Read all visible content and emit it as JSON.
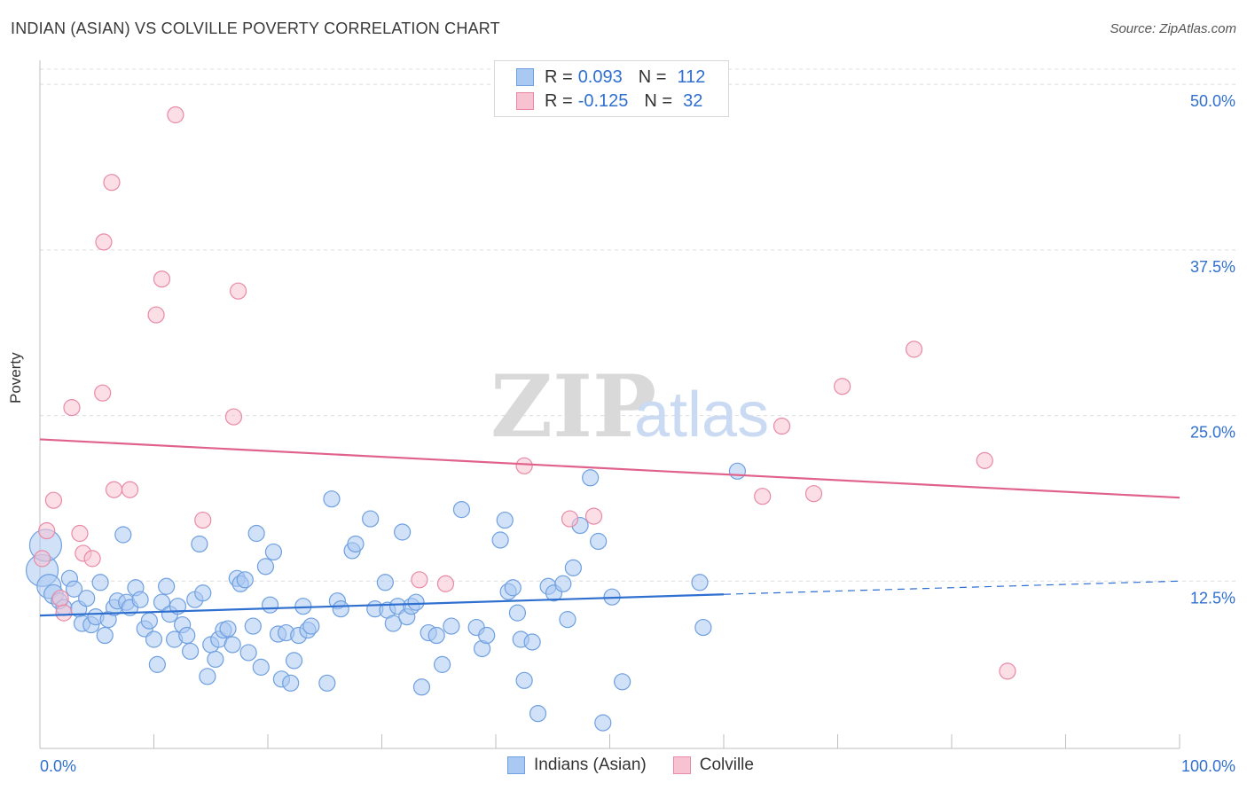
{
  "title": "INDIAN (ASIAN) VS COLVILLE POVERTY CORRELATION CHART",
  "source": "Source: ZipAtlas.com",
  "watermark": {
    "zip": "ZIP",
    "atlas": "atlas"
  },
  "legend": {
    "rows": [
      {
        "r_label": "R =",
        "r_value": "0.093",
        "n_label": "N =",
        "n_value": "112",
        "color": "#a9c8f2",
        "border": "#6fa0e0"
      },
      {
        "r_label": "R =",
        "r_value": "-0.125",
        "n_label": "N =",
        "n_value": "32",
        "color": "#f7c3d2",
        "border": "#e88aa6"
      }
    ]
  },
  "bottom_legend": [
    {
      "label": "Indians (Asian)",
      "color": "#a9c8f2",
      "border": "#6fa0e0"
    },
    {
      "label": "Colville",
      "color": "#f7c3d2",
      "border": "#e88aa6"
    }
  ],
  "chart_data": {
    "type": "scatter",
    "title": "INDIAN (ASIAN) VS COLVILLE POVERTY CORRELATION CHART",
    "xlabel": "",
    "ylabel": "Poverty",
    "xlim": [
      0,
      100
    ],
    "ylim": [
      0,
      50
    ],
    "x_tick_labels": [
      {
        "value": 0,
        "label": "0.0%"
      },
      {
        "value": 100,
        "label": "100.0%"
      }
    ],
    "y_tick_labels": [
      {
        "value": 12.5,
        "label": "12.5%"
      },
      {
        "value": 25,
        "label": "25.0%"
      },
      {
        "value": 37.5,
        "label": "37.5%"
      },
      {
        "value": 50,
        "label": "50.0%"
      }
    ],
    "grid": "horizontal dashed",
    "series": [
      {
        "name": "Indians (Asian)",
        "color": "#6fa0e0",
        "fill": "#a9c8f2",
        "trend": {
          "x": [
            0,
            60
          ],
          "y": [
            9.9,
            11.5
          ],
          "dashed_extension": {
            "x": [
              60,
              100
            ],
            "y": [
              11.5,
              12.5
            ]
          },
          "color": "#2f6fcf"
        },
        "points": [
          {
            "x": 0.2,
            "y": 13.3,
            "s": 2
          },
          {
            "x": 0.5,
            "y": 15.2,
            "s": 2
          },
          {
            "x": 0.8,
            "y": 12.1,
            "s": 1.5
          },
          {
            "x": 1.2,
            "y": 11.5,
            "s": 1.2
          },
          {
            "x": 1.7,
            "y": 11.0,
            "s": 1
          },
          {
            "x": 2.1,
            "y": 10.5,
            "s": 1
          },
          {
            "x": 2.6,
            "y": 12.7,
            "s": 1
          },
          {
            "x": 3.0,
            "y": 11.9,
            "s": 1
          },
          {
            "x": 3.4,
            "y": 10.4,
            "s": 1
          },
          {
            "x": 3.7,
            "y": 9.3,
            "s": 1
          },
          {
            "x": 4.1,
            "y": 11.2,
            "s": 1
          },
          {
            "x": 4.5,
            "y": 9.2,
            "s": 1
          },
          {
            "x": 4.9,
            "y": 9.8,
            "s": 1
          },
          {
            "x": 5.3,
            "y": 12.4,
            "s": 1
          },
          {
            "x": 5.7,
            "y": 8.4,
            "s": 1
          },
          {
            "x": 6.0,
            "y": 9.6,
            "s": 1
          },
          {
            "x": 6.5,
            "y": 10.5,
            "s": 1
          },
          {
            "x": 6.8,
            "y": 11.0,
            "s": 1
          },
          {
            "x": 7.3,
            "y": 16.0,
            "s": 1
          },
          {
            "x": 7.6,
            "y": 10.9,
            "s": 1
          },
          {
            "x": 7.9,
            "y": 10.5,
            "s": 1
          },
          {
            "x": 8.4,
            "y": 12.0,
            "s": 1
          },
          {
            "x": 8.8,
            "y": 11.1,
            "s": 1
          },
          {
            "x": 9.2,
            "y": 8.9,
            "s": 1
          },
          {
            "x": 9.6,
            "y": 9.5,
            "s": 1
          },
          {
            "x": 10.0,
            "y": 8.1,
            "s": 1
          },
          {
            "x": 10.3,
            "y": 6.2,
            "s": 1
          },
          {
            "x": 10.7,
            "y": 10.9,
            "s": 1
          },
          {
            "x": 11.1,
            "y": 12.1,
            "s": 1
          },
          {
            "x": 11.4,
            "y": 10.0,
            "s": 1
          },
          {
            "x": 11.8,
            "y": 8.1,
            "s": 1
          },
          {
            "x": 12.1,
            "y": 10.6,
            "s": 1
          },
          {
            "x": 12.5,
            "y": 9.2,
            "s": 1
          },
          {
            "x": 12.9,
            "y": 8.4,
            "s": 1
          },
          {
            "x": 13.2,
            "y": 7.2,
            "s": 1
          },
          {
            "x": 13.6,
            "y": 11.1,
            "s": 1
          },
          {
            "x": 14.0,
            "y": 15.3,
            "s": 1
          },
          {
            "x": 14.3,
            "y": 11.6,
            "s": 1
          },
          {
            "x": 14.7,
            "y": 5.3,
            "s": 1
          },
          {
            "x": 15.0,
            "y": 7.7,
            "s": 1
          },
          {
            "x": 15.4,
            "y": 6.6,
            "s": 1
          },
          {
            "x": 15.7,
            "y": 8.1,
            "s": 1
          },
          {
            "x": 16.1,
            "y": 8.8,
            "s": 1
          },
          {
            "x": 16.5,
            "y": 8.9,
            "s": 1
          },
          {
            "x": 16.9,
            "y": 7.7,
            "s": 1
          },
          {
            "x": 17.3,
            "y": 12.7,
            "s": 1
          },
          {
            "x": 17.6,
            "y": 12.3,
            "s": 1
          },
          {
            "x": 18.0,
            "y": 12.6,
            "s": 1
          },
          {
            "x": 18.3,
            "y": 7.1,
            "s": 1
          },
          {
            "x": 18.7,
            "y": 9.1,
            "s": 1
          },
          {
            "x": 19.0,
            "y": 16.1,
            "s": 1
          },
          {
            "x": 19.4,
            "y": 6.0,
            "s": 1
          },
          {
            "x": 19.8,
            "y": 13.6,
            "s": 1
          },
          {
            "x": 20.2,
            "y": 10.7,
            "s": 1
          },
          {
            "x": 20.5,
            "y": 14.7,
            "s": 1
          },
          {
            "x": 20.9,
            "y": 8.5,
            "s": 1
          },
          {
            "x": 21.2,
            "y": 5.1,
            "s": 1
          },
          {
            "x": 21.6,
            "y": 8.6,
            "s": 1
          },
          {
            "x": 22.0,
            "y": 4.8,
            "s": 1
          },
          {
            "x": 22.3,
            "y": 6.5,
            "s": 1
          },
          {
            "x": 22.7,
            "y": 8.4,
            "s": 1
          },
          {
            "x": 23.1,
            "y": 10.6,
            "s": 1
          },
          {
            "x": 23.5,
            "y": 8.8,
            "s": 1
          },
          {
            "x": 23.8,
            "y": 9.1,
            "s": 1
          },
          {
            "x": 25.2,
            "y": 4.8,
            "s": 1
          },
          {
            "x": 25.6,
            "y": 18.7,
            "s": 1
          },
          {
            "x": 26.1,
            "y": 11.0,
            "s": 1
          },
          {
            "x": 26.4,
            "y": 10.4,
            "s": 1
          },
          {
            "x": 27.4,
            "y": 14.8,
            "s": 1
          },
          {
            "x": 27.7,
            "y": 15.3,
            "s": 1
          },
          {
            "x": 29.0,
            "y": 17.2,
            "s": 1
          },
          {
            "x": 29.4,
            "y": 10.4,
            "s": 1
          },
          {
            "x": 30.3,
            "y": 12.4,
            "s": 1
          },
          {
            "x": 30.5,
            "y": 10.3,
            "s": 1
          },
          {
            "x": 31.0,
            "y": 9.3,
            "s": 1
          },
          {
            "x": 31.4,
            "y": 10.6,
            "s": 1
          },
          {
            "x": 31.8,
            "y": 16.2,
            "s": 1
          },
          {
            "x": 32.2,
            "y": 9.8,
            "s": 1
          },
          {
            "x": 32.6,
            "y": 10.6,
            "s": 1
          },
          {
            "x": 33.0,
            "y": 10.9,
            "s": 1
          },
          {
            "x": 33.5,
            "y": 4.5,
            "s": 1
          },
          {
            "x": 34.1,
            "y": 8.6,
            "s": 1
          },
          {
            "x": 34.8,
            "y": 8.4,
            "s": 1
          },
          {
            "x": 35.3,
            "y": 6.2,
            "s": 1
          },
          {
            "x": 36.1,
            "y": 9.1,
            "s": 1
          },
          {
            "x": 37.0,
            "y": 17.9,
            "s": 1
          },
          {
            "x": 38.3,
            "y": 9.0,
            "s": 1
          },
          {
            "x": 38.8,
            "y": 7.4,
            "s": 1
          },
          {
            "x": 39.2,
            "y": 8.4,
            "s": 1
          },
          {
            "x": 40.4,
            "y": 15.6,
            "s": 1
          },
          {
            "x": 40.8,
            "y": 17.1,
            "s": 1
          },
          {
            "x": 41.1,
            "y": 11.7,
            "s": 1
          },
          {
            "x": 41.5,
            "y": 12.0,
            "s": 1
          },
          {
            "x": 41.9,
            "y": 10.1,
            "s": 1
          },
          {
            "x": 42.2,
            "y": 8.1,
            "s": 1
          },
          {
            "x": 42.5,
            "y": 5.0,
            "s": 1
          },
          {
            "x": 43.2,
            "y": 7.9,
            "s": 1
          },
          {
            "x": 43.7,
            "y": 2.5,
            "s": 1
          },
          {
            "x": 44.6,
            "y": 12.1,
            "s": 1
          },
          {
            "x": 45.1,
            "y": 11.6,
            "s": 1
          },
          {
            "x": 45.9,
            "y": 12.3,
            "s": 1
          },
          {
            "x": 46.3,
            "y": 9.6,
            "s": 1
          },
          {
            "x": 46.8,
            "y": 13.5,
            "s": 1
          },
          {
            "x": 47.4,
            "y": 16.7,
            "s": 1
          },
          {
            "x": 48.3,
            "y": 20.3,
            "s": 1
          },
          {
            "x": 49.0,
            "y": 15.5,
            "s": 1
          },
          {
            "x": 49.4,
            "y": 1.8,
            "s": 1
          },
          {
            "x": 50.2,
            "y": 11.3,
            "s": 1
          },
          {
            "x": 51.1,
            "y": 4.9,
            "s": 1
          },
          {
            "x": 57.9,
            "y": 12.4,
            "s": 1
          },
          {
            "x": 58.2,
            "y": 9.0,
            "s": 1
          },
          {
            "x": 61.2,
            "y": 20.8,
            "s": 1
          }
        ]
      },
      {
        "name": "Colville",
        "color": "#e88aa6",
        "fill": "#f7c3d2",
        "trend": {
          "x": [
            0,
            100
          ],
          "y": [
            23.2,
            18.8
          ],
          "color": "#e0628c"
        },
        "points": [
          {
            "x": 0.2,
            "y": 14.2,
            "s": 1
          },
          {
            "x": 0.6,
            "y": 16.3,
            "s": 1
          },
          {
            "x": 1.2,
            "y": 18.6,
            "s": 1
          },
          {
            "x": 1.8,
            "y": 11.2,
            "s": 1
          },
          {
            "x": 2.1,
            "y": 10.1,
            "s": 1
          },
          {
            "x": 2.8,
            "y": 25.6,
            "s": 1
          },
          {
            "x": 3.5,
            "y": 16.1,
            "s": 1
          },
          {
            "x": 3.8,
            "y": 14.6,
            "s": 1
          },
          {
            "x": 4.6,
            "y": 14.2,
            "s": 1
          },
          {
            "x": 5.5,
            "y": 26.7,
            "s": 1
          },
          {
            "x": 5.6,
            "y": 38.1,
            "s": 1
          },
          {
            "x": 6.3,
            "y": 42.6,
            "s": 1
          },
          {
            "x": 6.5,
            "y": 19.4,
            "s": 1
          },
          {
            "x": 7.9,
            "y": 19.4,
            "s": 1
          },
          {
            "x": 10.2,
            "y": 32.6,
            "s": 1
          },
          {
            "x": 10.7,
            "y": 35.3,
            "s": 1
          },
          {
            "x": 11.9,
            "y": 47.7,
            "s": 1
          },
          {
            "x": 14.3,
            "y": 17.1,
            "s": 1
          },
          {
            "x": 17.0,
            "y": 24.9,
            "s": 1
          },
          {
            "x": 17.4,
            "y": 34.4,
            "s": 1
          },
          {
            "x": 33.3,
            "y": 12.6,
            "s": 1
          },
          {
            "x": 35.6,
            "y": 12.3,
            "s": 1
          },
          {
            "x": 42.5,
            "y": 21.2,
            "s": 1
          },
          {
            "x": 46.5,
            "y": 17.2,
            "s": 1
          },
          {
            "x": 48.6,
            "y": 17.4,
            "s": 1
          },
          {
            "x": 63.4,
            "y": 18.9,
            "s": 1
          },
          {
            "x": 65.1,
            "y": 24.2,
            "s": 1
          },
          {
            "x": 67.9,
            "y": 19.1,
            "s": 1
          },
          {
            "x": 70.4,
            "y": 27.2,
            "s": 1
          },
          {
            "x": 76.7,
            "y": 30.0,
            "s": 1
          },
          {
            "x": 82.9,
            "y": 21.6,
            "s": 1
          },
          {
            "x": 84.9,
            "y": 5.7,
            "s": 1
          }
        ]
      }
    ]
  }
}
